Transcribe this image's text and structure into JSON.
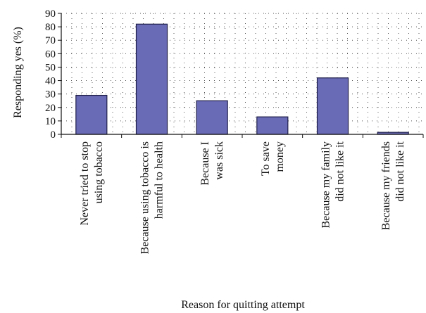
{
  "chart_data": {
    "type": "bar",
    "title": "",
    "xlabel": "Reason for quitting attempt",
    "ylabel": "Responding yes (%)",
    "ylim": [
      0,
      90
    ],
    "yticks": [
      0,
      10,
      20,
      30,
      40,
      50,
      60,
      70,
      80,
      90
    ],
    "grid": "dotted",
    "categories": [
      [
        "Never tried to stop",
        "using tobacco"
      ],
      [
        "Because using tobacco is",
        "harmful to health"
      ],
      [
        "Because I",
        "was sick"
      ],
      [
        "To save",
        "money"
      ],
      [
        "Because my family",
        "did not like it"
      ],
      [
        "Because my friends",
        "did not like it"
      ]
    ],
    "values": [
      29,
      82,
      25,
      13,
      42,
      1.5
    ],
    "bar_color": "#6a6bb6",
    "bar_stroke": "#1e1e4a"
  }
}
